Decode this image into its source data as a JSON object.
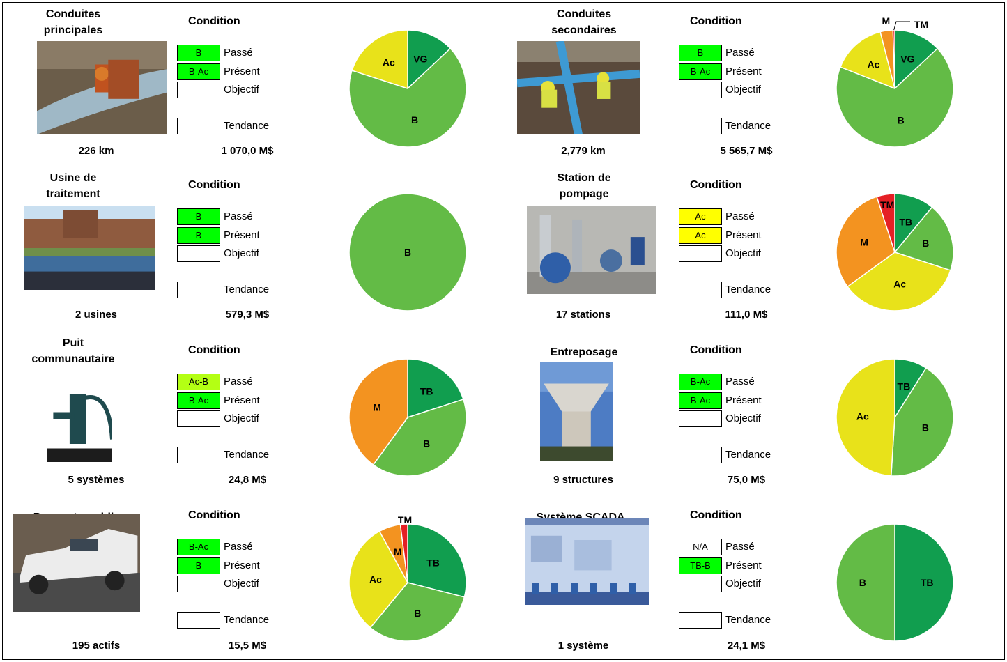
{
  "labels": {
    "condition": "Condition",
    "past": "Passé",
    "present": "Présent",
    "target": "Objectif",
    "trend": "Tendance"
  },
  "colors": {
    "TB": "#119e4f",
    "B": "#63bb46",
    "Ac": "#e8e21a",
    "M": "#f39320",
    "TM": "#e52025",
    "box_green": "#00ff00",
    "box_lime": "#b4ff14",
    "box_yellow": "#ffff00"
  },
  "panels": [
    {
      "id": "conduites-principales",
      "title": "Conduites\nprincipales",
      "count": "226 km",
      "value": "1 070,0 M$",
      "past": {
        "text": "B",
        "color": "#00ff00"
      },
      "present": {
        "text": "B-Ac",
        "color": "#00ff00"
      },
      "target": {
        "text": "",
        "color": "#ffffff"
      },
      "trend": {
        "text": "",
        "color": "#ffffff"
      },
      "photo": "pipe-repair-photo"
    },
    {
      "id": "conduites-secondaires",
      "title": "Conduites\nsecondaires",
      "count": "2,779 km",
      "value": "5 565,7 M$",
      "past": {
        "text": "B",
        "color": "#00ff00"
      },
      "present": {
        "text": "B-Ac",
        "color": "#00ff00"
      },
      "target": {
        "text": "",
        "color": "#ffffff"
      },
      "trend": {
        "text": "",
        "color": "#ffffff"
      },
      "photo": "pipe-installation-photo"
    },
    {
      "id": "usine-de-traitement",
      "title": "Usine de\ntraitement",
      "count": "2 usines",
      "value": "579,3 M$",
      "past": {
        "text": "B",
        "color": "#00ff00"
      },
      "present": {
        "text": "B",
        "color": "#00ff00"
      },
      "target": {
        "text": "",
        "color": "#ffffff"
      },
      "trend": {
        "text": "",
        "color": "#ffffff"
      },
      "photo": "treatment-plant-photo"
    },
    {
      "id": "station-de-pompage",
      "title": "Station de\npompage",
      "count": "17 stations",
      "value": "111,0 M$",
      "past": {
        "text": "Ac",
        "color": "#ffff00"
      },
      "present": {
        "text": "Ac",
        "color": "#ffff00"
      },
      "target": {
        "text": "",
        "color": "#ffffff"
      },
      "trend": {
        "text": "",
        "color": "#ffffff"
      },
      "photo": "pumping-station-photo"
    },
    {
      "id": "puit-communautaire",
      "title": "Puit\ncommunautaire",
      "count": "5 systèmes",
      "value": "24,8 M$",
      "past": {
        "text": "Ac-B",
        "color": "#b4ff14"
      },
      "present": {
        "text": "B-Ac",
        "color": "#00ff00"
      },
      "target": {
        "text": "",
        "color": "#ffffff"
      },
      "trend": {
        "text": "",
        "color": "#ffffff"
      },
      "photo": "hand-pump-photo"
    },
    {
      "id": "entreposage",
      "title": "Entreposage",
      "count": "9 structures",
      "value": "75,0 M$",
      "past": {
        "text": "B-Ac",
        "color": "#00ff00"
      },
      "present": {
        "text": "B-Ac",
        "color": "#00ff00"
      },
      "target": {
        "text": "",
        "color": "#ffffff"
      },
      "trend": {
        "text": "",
        "color": "#ffffff"
      },
      "photo": "water-tower-photo"
    },
    {
      "id": "parc-automobile",
      "title": "Parc automobile",
      "count": "195 actifs",
      "value": "15,5 M$",
      "past": {
        "text": "B-Ac",
        "color": "#00ff00"
      },
      "present": {
        "text": "B",
        "color": "#00ff00"
      },
      "target": {
        "text": "",
        "color": "#ffffff"
      },
      "trend": {
        "text": "",
        "color": "#ffffff"
      },
      "photo": "suv-photo"
    },
    {
      "id": "systeme-scada",
      "title": "Système SCADA",
      "count": "1  système",
      "value": "24,1 M$",
      "past": {
        "text": "N/A",
        "color": "#ffffff"
      },
      "present": {
        "text": "TB-B",
        "color": "#00ff00"
      },
      "target": {
        "text": "",
        "color": "#ffffff"
      },
      "trend": {
        "text": "",
        "color": "#ffffff"
      },
      "photo": "scada-screen-photo"
    }
  ],
  "chart_data": [
    {
      "type": "pie",
      "panel": "Conduites principales",
      "series": [
        {
          "values": [
            {
              "label": "VG",
              "value": 13
            },
            {
              "label": "B",
              "value": 67
            },
            {
              "label": "Ac",
              "value": 20
            }
          ]
        }
      ]
    },
    {
      "type": "pie",
      "panel": "Conduites secondaires",
      "series": [
        {
          "values": [
            {
              "label": "VG",
              "value": 13
            },
            {
              "label": "B",
              "value": 68
            },
            {
              "label": "Ac",
              "value": 15
            },
            {
              "label": "M",
              "value": 3.5
            },
            {
              "label": "TM",
              "value": 0.5
            }
          ]
        }
      ]
    },
    {
      "type": "pie",
      "panel": "Usine de traitement",
      "series": [
        {
          "values": [
            {
              "label": "B",
              "value": 100
            }
          ]
        }
      ]
    },
    {
      "type": "pie",
      "panel": "Station de pompage",
      "series": [
        {
          "values": [
            {
              "label": "TB",
              "value": 11
            },
            {
              "label": "B",
              "value": 19
            },
            {
              "label": "Ac",
              "value": 35
            },
            {
              "label": "M",
              "value": 30
            },
            {
              "label": "TM",
              "value": 5
            }
          ]
        }
      ]
    },
    {
      "type": "pie",
      "panel": "Puit communautaire",
      "series": [
        {
          "values": [
            {
              "label": "TB",
              "value": 20
            },
            {
              "label": "B",
              "value": 40
            },
            {
              "label": "M",
              "value": 40
            }
          ]
        }
      ]
    },
    {
      "type": "pie",
      "panel": "Entreposage",
      "series": [
        {
          "values": [
            {
              "label": "TB",
              "value": 9
            },
            {
              "label": "B",
              "value": 42
            },
            {
              "label": "Ac",
              "value": 49
            }
          ]
        }
      ]
    },
    {
      "type": "pie",
      "panel": "Parc automobile",
      "series": [
        {
          "values": [
            {
              "label": "TB",
              "value": 29
            },
            {
              "label": "B",
              "value": 32
            },
            {
              "label": "Ac",
              "value": 31
            },
            {
              "label": "M",
              "value": 6
            },
            {
              "label": "TM",
              "value": 2
            }
          ]
        }
      ]
    },
    {
      "type": "pie",
      "panel": "Système SCADA",
      "series": [
        {
          "values": [
            {
              "label": "TB",
              "value": 50
            },
            {
              "label": "B",
              "value": 50
            }
          ]
        }
      ]
    }
  ]
}
